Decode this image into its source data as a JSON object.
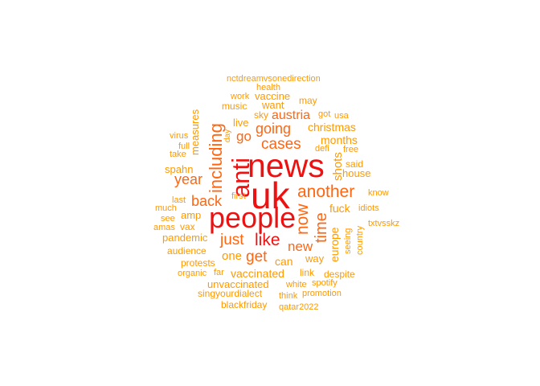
{
  "palette": {
    "top": "#ee1111",
    "mid": "#ff6611",
    "low": "#ff9900"
  },
  "words": [
    {
      "id": "news",
      "text": "news",
      "tier": "top",
      "v": false
    },
    {
      "id": "uk",
      "text": "uk",
      "tier": "top",
      "v": false
    },
    {
      "id": "people",
      "text": "people",
      "tier": "top",
      "v": false
    },
    {
      "id": "anti",
      "text": "anti",
      "tier": "top",
      "v": true
    },
    {
      "id": "like",
      "text": "like",
      "tier": "top",
      "v": false
    },
    {
      "id": "including",
      "text": "including",
      "tier": "mid",
      "v": true
    },
    {
      "id": "another",
      "text": "another",
      "tier": "mid",
      "v": false
    },
    {
      "id": "now",
      "text": "now",
      "tier": "mid",
      "v": true
    },
    {
      "id": "time",
      "text": "time",
      "tier": "mid",
      "v": true
    },
    {
      "id": "cases",
      "text": "cases",
      "tier": "mid",
      "v": false
    },
    {
      "id": "going",
      "text": "going",
      "tier": "mid",
      "v": false
    },
    {
      "id": "austria",
      "text": "austria",
      "tier": "mid",
      "v": false
    },
    {
      "id": "year",
      "text": "year",
      "tier": "mid",
      "v": false
    },
    {
      "id": "back",
      "text": "back",
      "tier": "mid",
      "v": false
    },
    {
      "id": "just",
      "text": "just",
      "tier": "mid",
      "v": false
    },
    {
      "id": "get",
      "text": "get",
      "tier": "mid",
      "v": false
    },
    {
      "id": "new",
      "text": "new",
      "tier": "mid",
      "v": false
    },
    {
      "id": "go",
      "text": "go",
      "tier": "mid",
      "v": false
    },
    {
      "id": "shots",
      "text": "shots",
      "tier": "low",
      "v": true
    },
    {
      "id": "europe",
      "text": "europe",
      "tier": "low",
      "v": true
    },
    {
      "id": "nctdream",
      "text": "nctdreamvsonedirection",
      "tier": "low",
      "v": false
    },
    {
      "id": "health",
      "text": "health",
      "tier": "low",
      "v": false
    },
    {
      "id": "work",
      "text": "work",
      "tier": "low",
      "v": false
    },
    {
      "id": "vaccine",
      "text": "vaccine",
      "tier": "low",
      "v": false
    },
    {
      "id": "may",
      "text": "may",
      "tier": "low",
      "v": false
    },
    {
      "id": "measures",
      "text": "measures",
      "tier": "low",
      "v": true
    },
    {
      "id": "music",
      "text": "music",
      "tier": "low",
      "v": false
    },
    {
      "id": "want",
      "text": "want",
      "tier": "low",
      "v": false
    },
    {
      "id": "sky",
      "text": "sky",
      "tier": "low",
      "v": false
    },
    {
      "id": "got",
      "text": "got",
      "tier": "low",
      "v": false
    },
    {
      "id": "usa",
      "text": "usa",
      "tier": "low",
      "v": false
    },
    {
      "id": "live",
      "text": "live",
      "tier": "low",
      "v": false
    },
    {
      "id": "christmas",
      "text": "christmas",
      "tier": "low",
      "v": false
    },
    {
      "id": "virus",
      "text": "virus",
      "tier": "low",
      "v": false
    },
    {
      "id": "day",
      "text": "day",
      "tier": "low",
      "v": true
    },
    {
      "id": "full",
      "text": "full",
      "tier": "low",
      "v": false
    },
    {
      "id": "months",
      "text": "months",
      "tier": "low",
      "v": false
    },
    {
      "id": "take",
      "text": "take",
      "tier": "low",
      "v": false
    },
    {
      "id": "defi",
      "text": "defi",
      "tier": "low",
      "v": false
    },
    {
      "id": "free",
      "text": "free",
      "tier": "low",
      "v": false
    },
    {
      "id": "spahn",
      "text": "spahn",
      "tier": "low",
      "v": false
    },
    {
      "id": "said",
      "text": "said",
      "tier": "low",
      "v": false
    },
    {
      "id": "house",
      "text": "house",
      "tier": "low",
      "v": false
    },
    {
      "id": "first",
      "text": "first",
      "tier": "low",
      "v": false
    },
    {
      "id": "know",
      "text": "know",
      "tier": "low",
      "v": false
    },
    {
      "id": "last",
      "text": "last",
      "tier": "low",
      "v": false
    },
    {
      "id": "much",
      "text": "much",
      "tier": "low",
      "v": false
    },
    {
      "id": "fuck",
      "text": "fuck",
      "tier": "low",
      "v": false
    },
    {
      "id": "idiots",
      "text": "idiots",
      "tier": "low",
      "v": false
    },
    {
      "id": "amp",
      "text": "amp",
      "tier": "low",
      "v": false
    },
    {
      "id": "see",
      "text": "see",
      "tier": "low",
      "v": false
    },
    {
      "id": "txtvsskz",
      "text": "txtvsskz",
      "tier": "low",
      "v": false
    },
    {
      "id": "amas",
      "text": "amas",
      "tier": "low",
      "v": false
    },
    {
      "id": "vax",
      "text": "vax",
      "tier": "low",
      "v": false
    },
    {
      "id": "seeing",
      "text": "seeing",
      "tier": "low",
      "v": true
    },
    {
      "id": "country",
      "text": "country",
      "tier": "low",
      "v": true
    },
    {
      "id": "pandemic",
      "text": "pandemic",
      "tier": "low",
      "v": false
    },
    {
      "id": "audience",
      "text": "audience",
      "tier": "low",
      "v": false
    },
    {
      "id": "one",
      "text": "one",
      "tier": "low",
      "v": false
    },
    {
      "id": "way",
      "text": "way",
      "tier": "low",
      "v": false
    },
    {
      "id": "can",
      "text": "can",
      "tier": "low",
      "v": false
    },
    {
      "id": "protests",
      "text": "protests",
      "tier": "low",
      "v": false
    },
    {
      "id": "organic",
      "text": "organic",
      "tier": "low",
      "v": false
    },
    {
      "id": "far",
      "text": "far",
      "tier": "low",
      "v": false
    },
    {
      "id": "vaccinated",
      "text": "vaccinated",
      "tier": "low",
      "v": false
    },
    {
      "id": "link",
      "text": "link",
      "tier": "low",
      "v": false
    },
    {
      "id": "despite",
      "text": "despite",
      "tier": "low",
      "v": false
    },
    {
      "id": "unvaccinated",
      "text": "unvaccinated",
      "tier": "low",
      "v": false
    },
    {
      "id": "white",
      "text": "white",
      "tier": "low",
      "v": false
    },
    {
      "id": "spotify",
      "text": "spotify",
      "tier": "low",
      "v": false
    },
    {
      "id": "singyourdialect",
      "text": "singyourdialect",
      "tier": "low",
      "v": false
    },
    {
      "id": "think",
      "text": "think",
      "tier": "low",
      "v": false
    },
    {
      "id": "promotion",
      "text": "promotion",
      "tier": "low",
      "v": false
    },
    {
      "id": "blackfriday",
      "text": "blackfriday",
      "tier": "low",
      "v": false
    },
    {
      "id": "qatar2022",
      "text": "qatar2022",
      "tier": "low",
      "v": false
    }
  ]
}
